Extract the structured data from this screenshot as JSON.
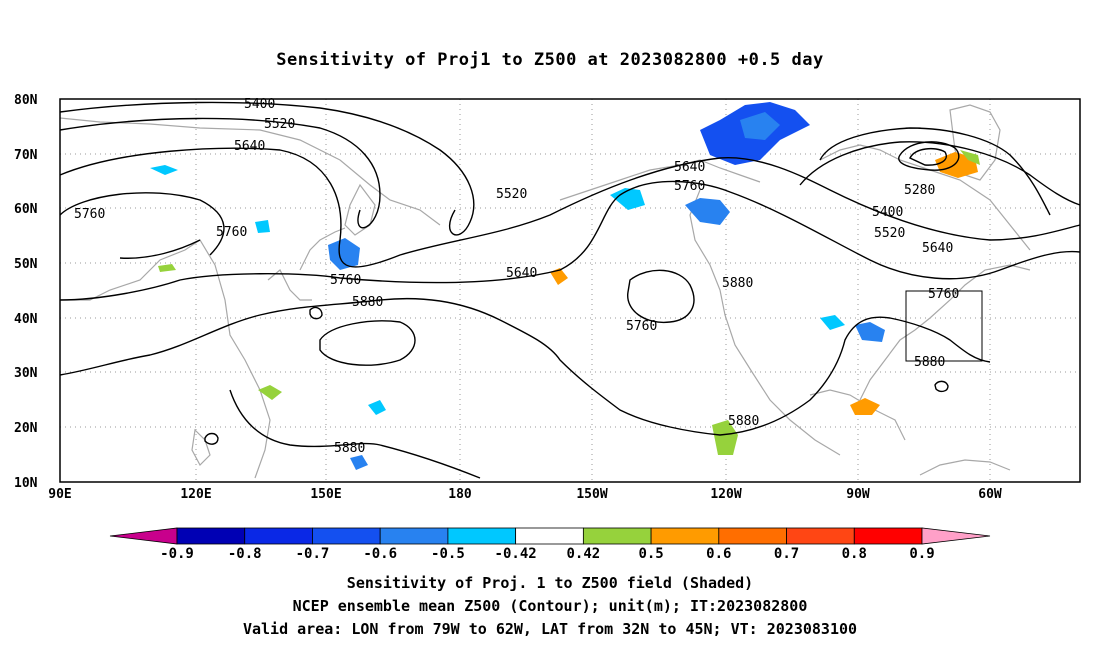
{
  "title": "Sensitivity of Proj1 to Z500 at 2023082800 +0.5 day",
  "lat_labels": [
    "80N",
    "70N",
    "60N",
    "50N",
    "40N",
    "30N",
    "20N",
    "10N"
  ],
  "lon_labels": [
    "90E",
    "120E",
    "150E",
    "180",
    "150W",
    "120W",
    "90W",
    "60W"
  ],
  "contour_labels": [
    "5400",
    "5520",
    "5640",
    "5760",
    "5760",
    "5520",
    "5640",
    "5760",
    "5280",
    "5400",
    "5520",
    "5640",
    "5640",
    "5760",
    "5880",
    "5880",
    "5760",
    "5760",
    "5880",
    "5880",
    "5880"
  ],
  "colorbar": {
    "ticks": [
      "-0.9",
      "-0.8",
      "-0.7",
      "-0.6",
      "-0.5",
      "-0.42",
      "0.42",
      "0.5",
      "0.6",
      "0.7",
      "0.8",
      "0.9"
    ],
    "colors": [
      "#0000b4",
      "#0a28e6",
      "#1450f0",
      "#2882f0",
      "#00c8ff",
      "#ffffff",
      "#96d23c",
      "#ff9b00",
      "#ff6e00",
      "#ff4614",
      "#ff0000"
    ],
    "min_color": "#c8008c",
    "max_color": "#ffa0c8"
  },
  "captions": [
    "Sensitivity of Proj. 1 to Z500 field (Shaded)",
    "NCEP ensemble mean Z500 (Contour); unit(m); IT:2023082800",
    "Valid area: LON from 79W to 62W, LAT from 32N to 45N; VT: 2023083100"
  ]
}
